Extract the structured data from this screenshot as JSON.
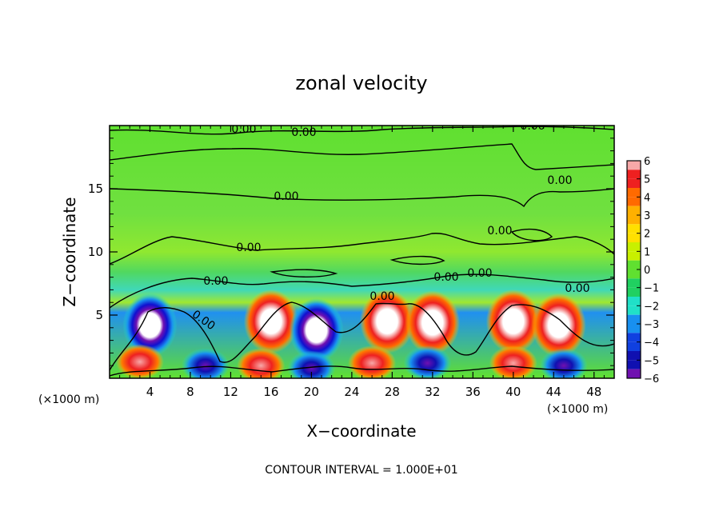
{
  "chart_data": {
    "type": "heatmap",
    "title": "zonal velocity",
    "xlabel": "X−coordinate",
    "ylabel": "Z−coordinate",
    "x_unit": "(×1000 m)",
    "y_unit": "(×1000 m)",
    "xlim": [
      0,
      50
    ],
    "ylim": [
      0,
      20
    ],
    "x_ticks": [
      "4",
      "8",
      "12",
      "16",
      "20",
      "24",
      "28",
      "32",
      "36",
      "40",
      "44",
      "48"
    ],
    "y_ticks": [
      "5",
      "10",
      "15"
    ],
    "colorbar": {
      "ticks": [
        "6",
        "5",
        "4",
        "3",
        "2",
        "1",
        "0",
        "−1",
        "−2",
        "−3",
        "−4",
        "−5",
        "−6"
      ],
      "range": [
        -6,
        6
      ],
      "colors": [
        "#f7a8a8",
        "#ee2020",
        "#ff6a00",
        "#ffb000",
        "#ffe000",
        "#c8f000",
        "#60e030",
        "#20d060",
        "#20e0c8",
        "#1890f0",
        "#1040e0",
        "#1010b0",
        "#7010b0"
      ]
    },
    "contour_labels": [
      "0.00",
      "0.00",
      "0.00",
      "0.00",
      "0.00",
      "0.00",
      "0.00",
      "0.00",
      "0.00",
      "0.00",
      "0.00",
      "0.00",
      "0.00"
    ],
    "contour_interval_text": "CONTOUR INTERVAL = 1.000E+01",
    "features": [
      {
        "x": 4,
        "z": 4.2,
        "value": 6,
        "sign": "positive-core"
      },
      {
        "x": 16,
        "z": 4.5,
        "value": 6,
        "sign": "positive-core"
      },
      {
        "x": 20.5,
        "z": 3.8,
        "value": 6,
        "sign": "positive-core"
      },
      {
        "x": 27.5,
        "z": 4.5,
        "value": 6,
        "sign": "positive-core"
      },
      {
        "x": 32,
        "z": 4.4,
        "value": 6,
        "sign": "positive-core"
      },
      {
        "x": 40,
        "z": 4.5,
        "value": 6,
        "sign": "positive-core"
      },
      {
        "x": 44.5,
        "z": 4.2,
        "value": 6,
        "sign": "positive-core"
      },
      {
        "x": 3,
        "z": 1.3,
        "value": 5
      },
      {
        "x": 9.5,
        "z": 1.0,
        "value": -5
      },
      {
        "x": 15,
        "z": 1.0,
        "value": 5
      },
      {
        "x": 20,
        "z": 0.8,
        "value": -6
      },
      {
        "x": 26,
        "z": 1.2,
        "value": 5
      },
      {
        "x": 31.5,
        "z": 1.2,
        "value": -6
      },
      {
        "x": 40,
        "z": 1.2,
        "value": 5
      },
      {
        "x": 45,
        "z": 1.0,
        "value": -5
      }
    ]
  }
}
